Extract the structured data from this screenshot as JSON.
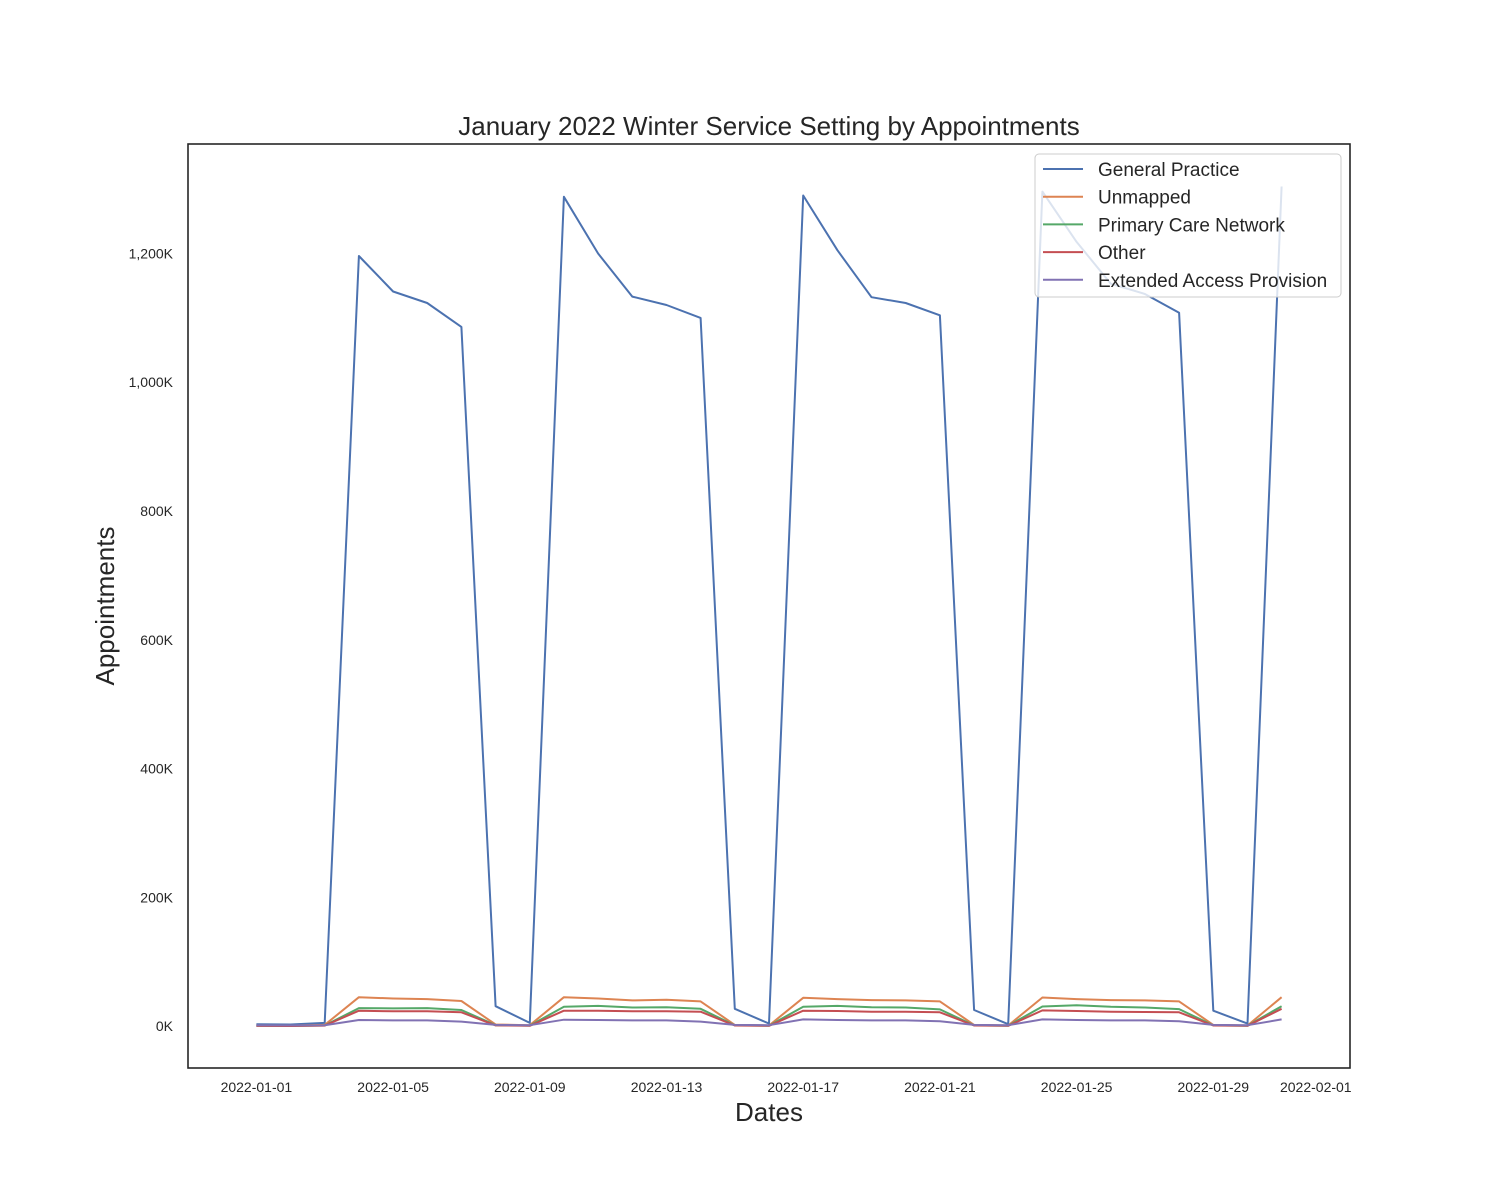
{
  "chart_data": {
    "type": "line",
    "title": "January 2022 Winter Service Setting by Appointments",
    "xlabel": "Dates",
    "ylabel": "Appointments",
    "x": [
      "2022-01-01",
      "2022-01-02",
      "2022-01-03",
      "2022-01-04",
      "2022-01-05",
      "2022-01-06",
      "2022-01-07",
      "2022-01-08",
      "2022-01-09",
      "2022-01-10",
      "2022-01-11",
      "2022-01-12",
      "2022-01-13",
      "2022-01-14",
      "2022-01-15",
      "2022-01-16",
      "2022-01-17",
      "2022-01-18",
      "2022-01-19",
      "2022-01-20",
      "2022-01-21",
      "2022-01-22",
      "2022-01-23",
      "2022-01-24",
      "2022-01-25",
      "2022-01-26",
      "2022-01-27",
      "2022-01-28",
      "2022-01-29",
      "2022-01-30",
      "2022-01-31"
    ],
    "x_ticks": [
      "2022-01-01",
      "2022-01-05",
      "2022-01-09",
      "2022-01-13",
      "2022-01-17",
      "2022-01-21",
      "2022-01-25",
      "2022-01-29",
      "2022-02-01"
    ],
    "xlim": [
      "2021-12-30",
      "2022-02-02"
    ],
    "y_ticks": [
      0,
      200000,
      400000,
      600000,
      800000,
      1000000,
      1200000
    ],
    "y_tick_labels": [
      "0K",
      "200K",
      "400K",
      "600K",
      "800K",
      "1,000K",
      "1,200K"
    ],
    "ylim": [
      -65000,
      1370000
    ],
    "grid": false,
    "legend_position": "top-right",
    "series": [
      {
        "name": "General Practice",
        "color": "#4c72b0",
        "values": [
          3000,
          2500,
          5000,
          1196000,
          1141000,
          1123000,
          1086000,
          31000,
          5000,
          1288000,
          1200000,
          1133000,
          1120000,
          1100000,
          27000,
          4000,
          1290000,
          1205000,
          1132000,
          1123000,
          1104000,
          25000,
          3000,
          1296000,
          1218000,
          1153000,
          1137000,
          1108000,
          24000,
          4000,
          1304000
        ]
      },
      {
        "name": "Unmapped",
        "color": "#dd8452",
        "values": [
          1000,
          900,
          2000,
          45000,
          43000,
          42000,
          39000,
          2500,
          1500,
          45000,
          43000,
          40000,
          41000,
          38500,
          2000,
          1000,
          44000,
          42000,
          40500,
          40000,
          38500,
          2000,
          1000,
          44500,
          42000,
          40500,
          40000,
          38500,
          2000,
          1000,
          45000
        ]
      },
      {
        "name": "Primary Care Network",
        "color": "#55a868",
        "values": [
          500,
          400,
          1000,
          28000,
          27500,
          28000,
          25000,
          1500,
          800,
          30000,
          31500,
          29000,
          29500,
          27000,
          1200,
          700,
          30000,
          31500,
          29500,
          29000,
          26000,
          1200,
          700,
          30500,
          32500,
          30000,
          29000,
          26500,
          1200,
          700,
          31000
        ]
      },
      {
        "name": "Other",
        "color": "#c44e52",
        "values": [
          400,
          300,
          800,
          24000,
          23000,
          23000,
          21500,
          1200,
          600,
          24000,
          24000,
          23000,
          23000,
          22500,
          1000,
          500,
          24000,
          23500,
          22500,
          22500,
          21500,
          1000,
          500,
          24500,
          23500,
          22500,
          22000,
          21500,
          1000,
          500,
          27000
        ]
      },
      {
        "name": "Extended Access Provision",
        "color": "#8172b3",
        "values": [
          1500,
          1200,
          1500,
          9500,
          9000,
          9000,
          7000,
          2000,
          1500,
          10000,
          9500,
          9000,
          9000,
          7000,
          2000,
          1500,
          10500,
          9500,
          9000,
          9000,
          7500,
          2000,
          1500,
          10500,
          9500,
          9000,
          9000,
          7500,
          2000,
          1500,
          10500
        ]
      }
    ]
  }
}
